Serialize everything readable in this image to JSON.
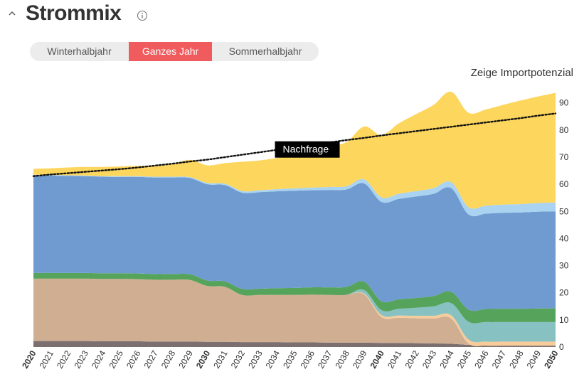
{
  "header": {
    "title": "Strommix",
    "collapse_icon": "chevron-up-icon",
    "info_icon": "info-circle-icon"
  },
  "tabs": [
    {
      "label": "Winterhalbjahr",
      "active": false
    },
    {
      "label": "Ganzes Jahr",
      "active": true
    },
    {
      "label": "Sommerhalbjahr",
      "active": false
    }
  ],
  "import_link": "Zeige Importpotenzial",
  "colors": {
    "tab_active": "#f05b5e",
    "dark_gray": "#7b6f6f",
    "brown": "#cfae92",
    "peach": "#f7cc9a",
    "teal": "#87c1c1",
    "green": "#56a35c",
    "blue": "#6f9bd1",
    "light_blue": "#a9d3f0",
    "yellow": "#fdd65e",
    "demand_line": "#111111"
  },
  "chart_data": {
    "type": "area",
    "stacked": true,
    "x": [
      2020,
      2021,
      2022,
      2023,
      2024,
      2025,
      2026,
      2027,
      2028,
      2029,
      2030,
      2031,
      2032,
      2033,
      2034,
      2035,
      2036,
      2037,
      2038,
      2039,
      2040,
      2041,
      2042,
      2043,
      2044,
      2045,
      2046,
      2047,
      2048,
      2049,
      2050
    ],
    "x_bold": [
      2020,
      2030,
      2040,
      2050
    ],
    "ylim": [
      0,
      93
    ],
    "yticks": [
      0,
      10,
      20,
      30,
      40,
      50,
      60,
      70,
      80,
      90
    ],
    "grid": false,
    "series": [
      {
        "key": "dark_gray",
        "values": [
          2.2,
          2.2,
          2.2,
          2.2,
          2.1,
          2.1,
          2.1,
          2.0,
          2.0,
          2.0,
          1.9,
          1.9,
          1.8,
          1.8,
          1.8,
          1.7,
          1.7,
          1.6,
          1.6,
          1.6,
          1.5,
          1.5,
          1.4,
          1.3,
          1.2,
          0.8,
          0.5,
          0.5,
          0.5,
          0.5,
          0.5
        ]
      },
      {
        "key": "brown",
        "values": [
          23.0,
          23.0,
          23.0,
          23.0,
          23.0,
          23.0,
          22.9,
          22.8,
          22.8,
          22.7,
          20.6,
          20.3,
          17.4,
          17.4,
          17.4,
          17.5,
          17.6,
          17.6,
          17.7,
          17.8,
          9.5,
          9.3,
          9.2,
          9.2,
          9.3,
          0.5,
          0,
          0,
          0,
          0,
          0
        ]
      },
      {
        "key": "peach",
        "values": [
          0,
          0,
          0,
          0,
          0,
          0,
          0,
          0,
          0,
          0,
          0,
          0,
          0,
          0,
          0,
          0,
          0,
          0,
          0,
          0.3,
          0.8,
          0.8,
          0.9,
          1.0,
          1.2,
          1.5,
          1.5,
          1.5,
          1.5,
          1.5,
          1.5
        ]
      },
      {
        "key": "teal",
        "values": [
          0,
          0,
          0,
          0,
          0,
          0,
          0,
          0,
          0,
          0,
          0,
          0,
          0,
          0,
          0,
          0,
          0,
          0,
          0,
          1.3,
          1.8,
          2.5,
          3.0,
          3.5,
          4.5,
          6.5,
          7.2,
          7.2,
          7.2,
          7.2,
          7.2
        ]
      },
      {
        "key": "green",
        "values": [
          2.1,
          2.1,
          2.1,
          2.1,
          2.1,
          2.1,
          2.1,
          2.1,
          2.1,
          2.1,
          2.0,
          2.0,
          2.2,
          2.3,
          2.5,
          2.6,
          2.7,
          2.8,
          2.9,
          3.1,
          3.3,
          3.5,
          3.6,
          3.8,
          4.2,
          4.5,
          4.8,
          4.9,
          4.9,
          5.0,
          5.0
        ]
      },
      {
        "key": "blue",
        "values": [
          36.0,
          35.9,
          35.8,
          35.7,
          35.6,
          35.5,
          35.6,
          35.6,
          35.6,
          35.5,
          35.5,
          35.5,
          35.5,
          35.6,
          35.7,
          35.8,
          35.8,
          35.9,
          35.9,
          36.2,
          36.6,
          37.0,
          37.4,
          37.7,
          38.2,
          35.1,
          35.2,
          35.4,
          35.5,
          35.7,
          35.8
        ]
      },
      {
        "key": "light_blue",
        "values": [
          0.2,
          0.2,
          0.2,
          0.2,
          0.2,
          0.3,
          0.3,
          0.3,
          0.3,
          0.3,
          0.5,
          0.5,
          0.6,
          0.7,
          0.8,
          0.9,
          1.0,
          1.1,
          1.2,
          1.5,
          1.7,
          1.9,
          2.0,
          2.1,
          2.2,
          2.7,
          2.9,
          3.0,
          3.1,
          3.2,
          3.3
        ]
      },
      {
        "key": "yellow",
        "values": [
          2.2,
          2.5,
          2.9,
          3.2,
          3.4,
          3.6,
          3.8,
          4.0,
          4.6,
          6.4,
          6.5,
          7.6,
          10.8,
          11.0,
          11.5,
          12.2,
          13.1,
          15.1,
          16.3,
          19.5,
          23.0,
          26.0,
          28.4,
          30.7,
          33.3,
          34.8,
          35.5,
          36.8,
          38.2,
          39.3,
          40.4
        ]
      }
    ],
    "demand": {
      "label": "Nachfrage",
      "values": [
        63.0,
        63.6,
        64.1,
        64.6,
        65.1,
        65.6,
        66.2,
        66.9,
        67.6,
        68.4,
        69.1,
        70.0,
        70.9,
        71.8,
        72.7,
        73.6,
        74.5,
        75.4,
        76.3,
        77.1,
        78.0,
        78.8,
        79.6,
        80.4,
        81.2,
        82.0,
        82.8,
        83.6,
        84.4,
        85.3,
        86.1
      ]
    }
  }
}
